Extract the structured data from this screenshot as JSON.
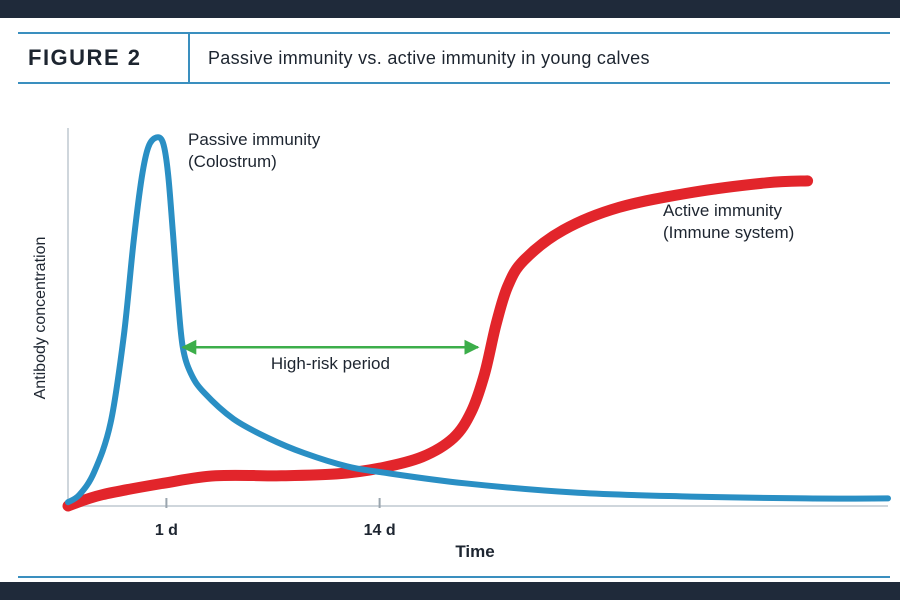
{
  "figure": {
    "label": "FIGURE 2",
    "title": "Passive immunity vs. active immunity in young calves"
  },
  "colors": {
    "passive": "#2a8fc4",
    "active": "#e2252b",
    "high_risk": "#3cae4a",
    "header_rule": "#3a8fbf",
    "frame": "#1f2a3a"
  },
  "chart_data": {
    "type": "line",
    "xlabel": "Time",
    "ylabel": "Antibody concentration",
    "x_ticks": [
      {
        "label": "1 d",
        "value": 1
      },
      {
        "label": "14 d",
        "value": 14
      }
    ],
    "xlim": [
      -5,
      45
    ],
    "ylim": [
      0,
      1
    ],
    "grid": false,
    "series": [
      {
        "name": "Passive immunity",
        "sublabel": "(Colostrum)",
        "color": "#2a8fc4",
        "points": [
          [
            -5.0,
            0.01
          ],
          [
            -4.3,
            0.03
          ],
          [
            -3.4,
            0.09
          ],
          [
            -2.4,
            0.22
          ],
          [
            -1.6,
            0.45
          ],
          [
            -1.0,
            0.7
          ],
          [
            -0.5,
            0.87
          ],
          [
            -0.1,
            0.95
          ],
          [
            0.4,
            0.975
          ],
          [
            0.8,
            0.96
          ],
          [
            1.1,
            0.88
          ],
          [
            1.4,
            0.72
          ],
          [
            1.7,
            0.55
          ],
          [
            2.0,
            0.42
          ],
          [
            2.5,
            0.35
          ],
          [
            3.3,
            0.3
          ],
          [
            5.1,
            0.23
          ],
          [
            7.2,
            0.18
          ],
          [
            9.4,
            0.14
          ],
          [
            12.0,
            0.105
          ],
          [
            14.0,
            0.09
          ],
          [
            19.2,
            0.06
          ],
          [
            26.1,
            0.035
          ],
          [
            33.0,
            0.025
          ],
          [
            40.0,
            0.02
          ],
          [
            45.0,
            0.02
          ]
        ]
      },
      {
        "name": "Active immunity",
        "sublabel": "(Immune system)",
        "color": "#e2252b",
        "points": [
          [
            -5.0,
            0.0
          ],
          [
            -2.9,
            0.03
          ],
          [
            0.8,
            0.06
          ],
          [
            4.0,
            0.08
          ],
          [
            8.0,
            0.08
          ],
          [
            11.4,
            0.085
          ],
          [
            14.0,
            0.1
          ],
          [
            16.6,
            0.13
          ],
          [
            18.5,
            0.18
          ],
          [
            19.6,
            0.25
          ],
          [
            20.4,
            0.35
          ],
          [
            21.1,
            0.48
          ],
          [
            21.8,
            0.58
          ],
          [
            22.8,
            0.65
          ],
          [
            25.2,
            0.73
          ],
          [
            28.6,
            0.79
          ],
          [
            33.1,
            0.83
          ],
          [
            37.6,
            0.855
          ],
          [
            40.1,
            0.86
          ]
        ]
      }
    ],
    "annotations": [
      {
        "text": "High-risk period",
        "type": "double-arrow",
        "x_start": 2.0,
        "x_end": 20.0,
        "y": 0.42
      }
    ]
  }
}
